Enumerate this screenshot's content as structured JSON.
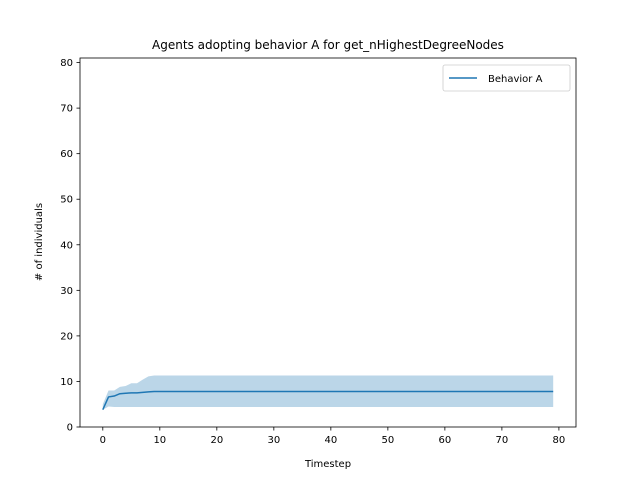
{
  "chart_data": {
    "type": "line",
    "title": "Agents adopting behavior A for get_nHighestDegreeNodes",
    "xlabel": "Timestep",
    "ylabel": "# of individuals",
    "xlim": [
      -4,
      83
    ],
    "ylim": [
      0,
      81
    ],
    "xticks": [
      0,
      10,
      20,
      30,
      40,
      50,
      60,
      70,
      80
    ],
    "yticks": [
      0,
      10,
      20,
      30,
      40,
      50,
      60,
      70,
      80
    ],
    "grid": false,
    "legend_position": "top-right",
    "series": [
      {
        "name": "Behavior A",
        "color": "#1f77b4",
        "x": [
          0,
          1,
          2,
          3,
          4,
          5,
          6,
          7,
          8,
          9,
          10,
          79
        ],
        "y": [
          3.8,
          6.6,
          6.8,
          7.3,
          7.4,
          7.5,
          7.5,
          7.6,
          7.7,
          7.8,
          7.8,
          7.8
        ],
        "band_upper": [
          5.0,
          8.0,
          8.0,
          8.8,
          9.0,
          9.6,
          9.6,
          10.4,
          11.1,
          11.3,
          11.3,
          11.3
        ],
        "band_lower": [
          3.8,
          4.5,
          4.4,
          4.4,
          4.4,
          4.4,
          4.4,
          4.4,
          4.4,
          4.4,
          4.4,
          4.4
        ]
      }
    ]
  }
}
